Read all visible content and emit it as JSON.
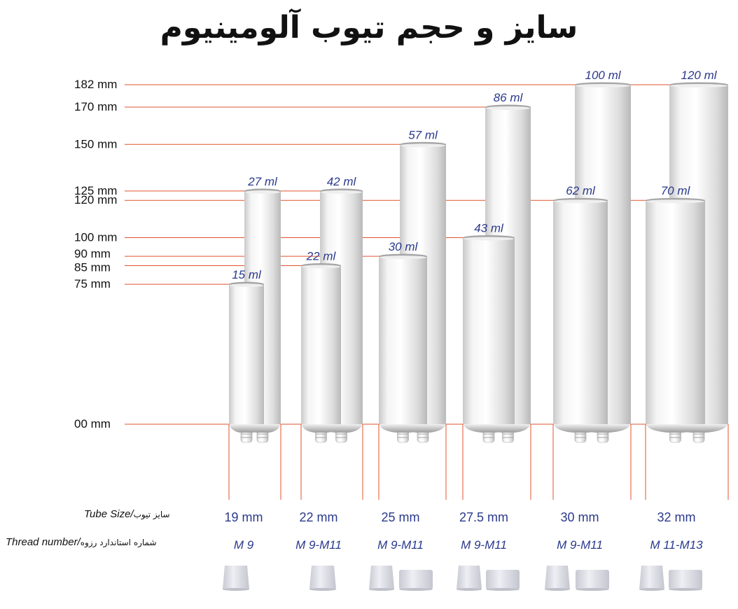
{
  "title": "سایز و حجم تیوب آلومینیوم",
  "colors": {
    "guide": "#e0532f",
    "capacity": "#2b3a8c",
    "tube": "#e6e6e6",
    "cap": "#dfe0e6"
  },
  "height_axis": {
    "unit": "mm",
    "levels": [
      {
        "value": 182,
        "label": "182 mm"
      },
      {
        "value": 170,
        "label": "170 mm"
      },
      {
        "value": 150,
        "label": "150 mm"
      },
      {
        "value": 125,
        "label": "125 mm"
      },
      {
        "value": 120,
        "label": "120 mm"
      },
      {
        "value": 100,
        "label": "100 mm"
      },
      {
        "value": 90,
        "label": "90 mm"
      },
      {
        "value": 85,
        "label": "85 mm"
      },
      {
        "value": 75,
        "label": "75 mm"
      },
      {
        "value": 0,
        "label": "00 mm"
      }
    ]
  },
  "rows": {
    "tube_size": {
      "fa": "سایز تیوب",
      "en": "Tube Size/"
    },
    "thread": {
      "fa": "شماره استاندارد رزوه",
      "en": "Thread number/"
    }
  },
  "groups": [
    {
      "diameter": "19 mm",
      "thread": "M 9",
      "caps": [
        "conical"
      ],
      "tubes": [
        {
          "height": 75,
          "volume": "15 ml"
        },
        {
          "height": 125,
          "volume": "27 ml"
        }
      ]
    },
    {
      "diameter": "22 mm",
      "thread": "M 9-M11",
      "caps": [
        "conical"
      ],
      "tubes": [
        {
          "height": 85,
          "volume": "22 ml"
        },
        {
          "height": 125,
          "volume": "42 ml"
        }
      ]
    },
    {
      "diameter": "25 mm",
      "thread": "M 9-M11",
      "caps": [
        "conical",
        "flat"
      ],
      "tubes": [
        {
          "height": 90,
          "volume": "30 ml"
        },
        {
          "height": 150,
          "volume": "57 ml"
        }
      ]
    },
    {
      "diameter": "27.5 mm",
      "thread": "M 9-M11",
      "caps": [
        "conical",
        "flat"
      ],
      "tubes": [
        {
          "height": 100,
          "volume": "43 ml"
        },
        {
          "height": 170,
          "volume": "86 ml"
        }
      ]
    },
    {
      "diameter": "30 mm",
      "thread": "M 9-M11",
      "caps": [
        "conical",
        "flat"
      ],
      "tubes": [
        {
          "height": 120,
          "volume": "62 ml"
        },
        {
          "height": 182,
          "volume": "100 ml"
        }
      ]
    },
    {
      "diameter": "32 mm",
      "thread": "M 11-M13",
      "caps": [
        "conical",
        "flat"
      ],
      "tubes": [
        {
          "height": 120,
          "volume": "70 ml"
        },
        {
          "height": 182,
          "volume": "120 ml"
        }
      ]
    }
  ]
}
